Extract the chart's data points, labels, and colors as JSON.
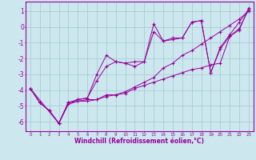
{
  "xlabel": "Windchill (Refroidissement éolien,°C)",
  "background_color": "#cce8ee",
  "grid_color": "#aaccd4",
  "line_color": "#990099",
  "xlim": [
    -0.5,
    23.5
  ],
  "ylim": [
    -6.6,
    1.6
  ],
  "yticks": [
    1,
    0,
    -1,
    -2,
    -3,
    -4,
    -5,
    -6
  ],
  "xticks": [
    0,
    1,
    2,
    3,
    4,
    5,
    6,
    7,
    8,
    9,
    10,
    11,
    12,
    13,
    14,
    15,
    16,
    17,
    18,
    19,
    20,
    21,
    22,
    23
  ],
  "series": [
    {
      "x": [
        0,
        1,
        2,
        3,
        4,
        5,
        6,
        7,
        8,
        9,
        10,
        11,
        12,
        13,
        14,
        15,
        16,
        17,
        18,
        19,
        20,
        21,
        22,
        23
      ],
      "y": [
        -3.9,
        -4.8,
        -5.3,
        -6.1,
        -4.9,
        -4.7,
        -4.7,
        -4.6,
        -4.4,
        -4.3,
        -4.2,
        -3.9,
        -3.7,
        -3.5,
        -3.3,
        -3.1,
        -2.9,
        -2.7,
        -2.6,
        -2.4,
        -2.3,
        -0.6,
        -0.2,
        1.2
      ]
    },
    {
      "x": [
        0,
        1,
        2,
        3,
        4,
        5,
        6,
        7,
        8,
        9,
        10,
        11,
        12,
        13,
        14,
        15,
        16,
        17,
        18,
        19,
        20,
        21,
        22,
        23
      ],
      "y": [
        -3.9,
        -4.8,
        -5.3,
        -6.1,
        -4.8,
        -4.6,
        -4.5,
        -3.4,
        -2.5,
        -2.2,
        -2.3,
        -2.5,
        -2.2,
        -0.3,
        -0.9,
        -0.8,
        -0.7,
        0.3,
        0.4,
        -2.9,
        -1.3,
        -0.5,
        0.3,
        1.1
      ]
    },
    {
      "x": [
        0,
        1,
        2,
        3,
        4,
        5,
        6,
        7,
        8,
        9,
        10,
        11,
        12,
        13,
        14,
        15,
        16,
        17,
        18,
        19,
        20,
        21,
        22,
        23
      ],
      "y": [
        -3.9,
        -4.8,
        -5.3,
        -6.1,
        -4.8,
        -4.7,
        -4.6,
        -4.6,
        -4.3,
        -4.3,
        -4.1,
        -3.8,
        -3.5,
        -3.2,
        -2.6,
        -2.3,
        -1.8,
        -1.5,
        -1.1,
        -0.7,
        -0.3,
        0.1,
        0.5,
        1.0
      ]
    },
    {
      "x": [
        0,
        3,
        4,
        5,
        6,
        7,
        8,
        9,
        10,
        11,
        12,
        13,
        14,
        15,
        16,
        17,
        18,
        19,
        20,
        21,
        22,
        23
      ],
      "y": [
        -3.9,
        -6.1,
        -4.8,
        -4.6,
        -4.5,
        -3.0,
        -1.8,
        -2.2,
        -2.3,
        -2.2,
        -2.2,
        0.2,
        -0.9,
        -0.7,
        -0.7,
        0.3,
        0.4,
        -2.9,
        -1.4,
        -0.6,
        -0.1,
        1.1
      ]
    }
  ]
}
